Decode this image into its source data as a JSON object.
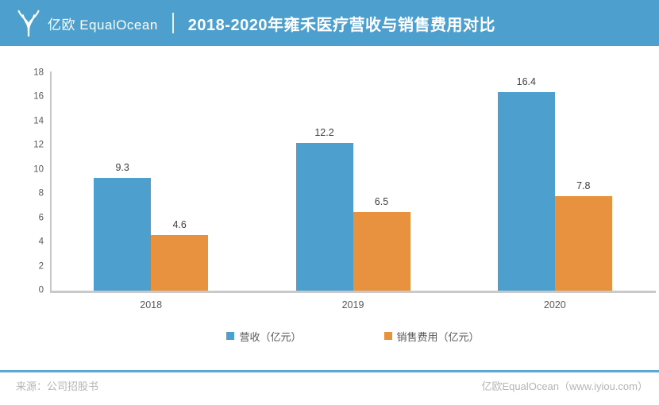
{
  "header": {
    "logo_text": "亿欧 EqualOcean",
    "title": "2018-2020年雍禾医疗营收与销售费用对比"
  },
  "chart_data": {
    "type": "bar",
    "title": "2018-2020年雍禾医疗营收与销售费用对比",
    "categories": [
      "2018",
      "2019",
      "2020"
    ],
    "series": [
      {
        "name": "营收（亿元）",
        "color": "#4D9FCE",
        "values": [
          9.3,
          12.2,
          16.4
        ]
      },
      {
        "name": "销售费用（亿元）",
        "color": "#E8913E",
        "values": [
          4.6,
          6.5,
          7.8
        ]
      }
    ],
    "xlabel": "",
    "ylabel": "",
    "ylim": [
      0,
      18
    ],
    "ytick_step": 2,
    "grid": false,
    "legend_position": "bottom"
  },
  "footer": {
    "source": "来源：公司招股书",
    "credit": "亿欧EqualOcean（www.iyiou.com）"
  },
  "colors": {
    "header_bg": "#4D9FCE",
    "footer_line": "#5BA7D5",
    "axis": "#C9C9C9",
    "tick_text": "#595959",
    "value_text": "#404040",
    "footer_text": "#B5B5B5"
  }
}
